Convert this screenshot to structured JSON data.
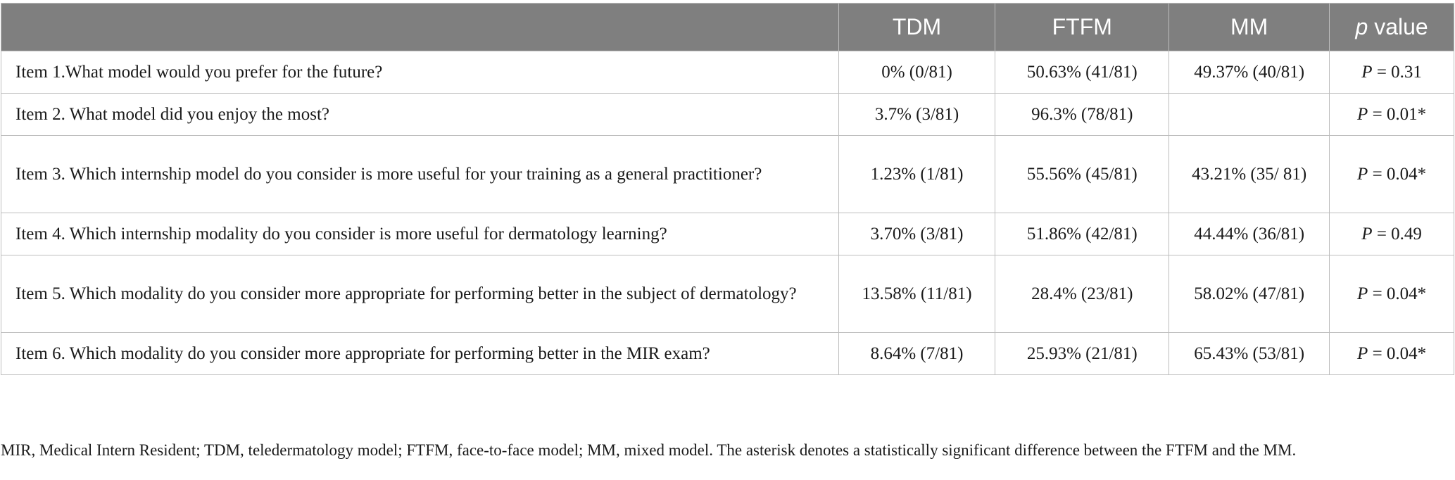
{
  "table": {
    "headers": {
      "item": "",
      "tdm": "TDM",
      "ftfm": "FTFM",
      "mm": "MM",
      "p_italic": "p",
      "p_rest": " value"
    },
    "rows": [
      {
        "item": "Item 1.What model would you prefer for the future?",
        "tdm": "0% (0/81)",
        "ftfm": "50.63% (41/81)",
        "mm": "49.37% (40/81)",
        "p_letter": "P",
        "p_rest": " = 0.31"
      },
      {
        "item": "Item 2. What model did you enjoy the most?",
        "tdm": "3.7% (3/81)",
        "ftfm": "96.3% (78/81)",
        "mm": "",
        "p_letter": "P",
        "p_rest": " = 0.01*"
      },
      {
        "item": "Item 3. Which internship model do you consider is more useful for your training as a general practitioner?",
        "tdm": "1.23% (1/81)",
        "ftfm": "55.56% (45/81)",
        "mm": "43.21% (35/ 81)",
        "p_letter": "P",
        "p_rest": " = 0.04*"
      },
      {
        "item": "Item 4. Which internship modality do you consider is more useful for dermatology learning?",
        "tdm": "3.70% (3/81)",
        "ftfm": "51.86% (42/81)",
        "mm": "44.44% (36/81)",
        "p_letter": "P",
        "p_rest": " = 0.49"
      },
      {
        "item": "Item 5. Which modality do you consider more appropriate for performing better in the subject of dermatology?",
        "tdm": "13.58% (11/81)",
        "ftfm": "28.4% (23/81)",
        "mm": "58.02% (47/81)",
        "p_letter": "P",
        "p_rest": " = 0.04*"
      },
      {
        "item": "Item 6. Which modality do you consider more appropriate for performing better in the MIR exam?",
        "tdm": "8.64% (7/81)",
        "ftfm": "25.93% (21/81)",
        "mm": "65.43% (53/81)",
        "p_letter": "P",
        "p_rest": " = 0.04*"
      }
    ]
  },
  "footnote": "MIR, Medical Intern Resident; TDM, teledermatology model; FTFM, face-to-face model; MM, mixed model. The asterisk denotes a statistically significant difference between the FTFM and the MM.",
  "colors": {
    "header_bg": "#7f7f7f",
    "header_text": "#ffffff",
    "border": "#bdbdbd",
    "body_text": "#1a1a1a"
  }
}
